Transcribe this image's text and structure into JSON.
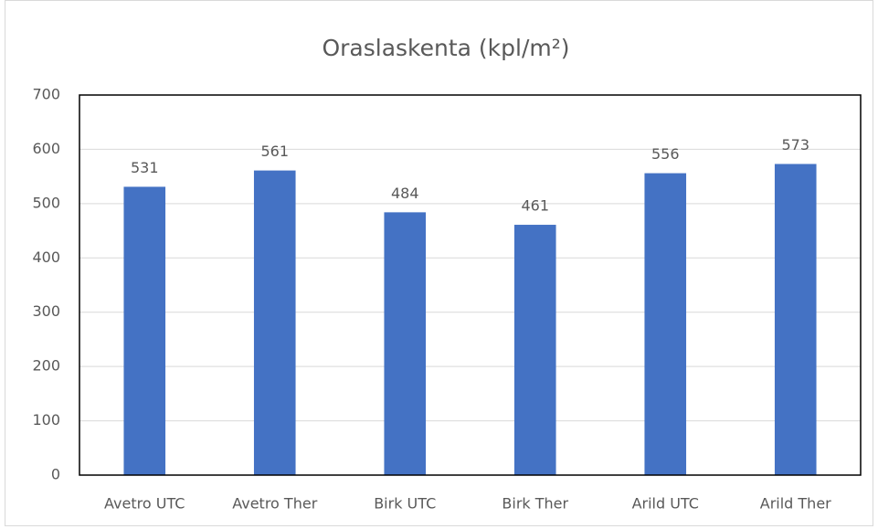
{
  "chart_data": {
    "type": "bar",
    "title": "Oraslaskenta (kpl/m²)",
    "categories": [
      "Avetro UTC",
      "Avetro Ther",
      "Birk UTC",
      "Birk Ther",
      "Arild UTC",
      "Arild Ther"
    ],
    "values": [
      531,
      561,
      484,
      461,
      556,
      573
    ],
    "color": "#4472c4",
    "ylim": [
      0,
      700
    ],
    "yticks": [
      0,
      100,
      200,
      300,
      400,
      500,
      600,
      700
    ],
    "grid": true
  }
}
